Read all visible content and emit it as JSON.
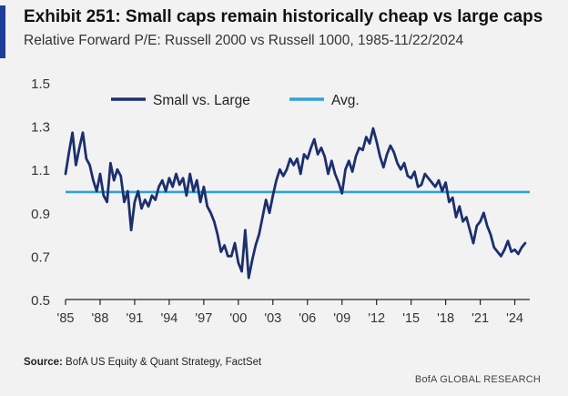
{
  "exhibit": {
    "title": "Exhibit 251: Small caps remain historically cheap vs large caps",
    "subtitle": "Relative Forward P/E: Russell 2000 vs Russell 1000, 1985-11/22/2024"
  },
  "footer": {
    "source_label": "Source:",
    "source_text": " BofA US Equity & Quant Strategy, FactSet",
    "brand": "BofA GLOBAL RESEARCH"
  },
  "colors": {
    "accent": "#1f3d99",
    "series_main": "#1c2f6e",
    "series_avg": "#2ea3dc",
    "axis": "#222222"
  },
  "chart_data": {
    "type": "line",
    "title": "Exhibit 251: Small caps remain historically cheap vs large caps",
    "subtitle": "Relative Forward P/E: Russell 2000 vs Russell 1000, 1985-11/22/2024",
    "xlabel": "",
    "ylabel": "",
    "xlim": [
      1985,
      2025.3
    ],
    "ylim": [
      0.5,
      1.5
    ],
    "yticks": [
      0.5,
      0.7,
      0.9,
      1.1,
      1.3,
      1.5
    ],
    "ytick_labels": [
      "0.5",
      "0.7",
      "0.9",
      "1.1",
      "1.3",
      "1.5"
    ],
    "xticks": [
      1985,
      1988,
      1991,
      1994,
      1997,
      2000,
      2003,
      2006,
      2009,
      2012,
      2015,
      2018,
      2021,
      2024
    ],
    "xtick_labels": [
      "'85",
      "'88",
      "'91",
      "'94",
      "'97",
      "'00",
      "'03",
      "'06",
      "'09",
      "'12",
      "'15",
      "'18",
      "'21",
      "'24"
    ],
    "grid": false,
    "legend_position": "top-left",
    "series": [
      {
        "name": "Small vs. Large",
        "x": [
          1985.0,
          1985.3,
          1985.6,
          1985.9,
          1986.2,
          1986.5,
          1986.8,
          1987.1,
          1987.4,
          1987.7,
          1988.0,
          1988.3,
          1988.6,
          1988.9,
          1989.2,
          1989.5,
          1989.8,
          1990.1,
          1990.4,
          1990.7,
          1991.0,
          1991.3,
          1991.6,
          1991.9,
          1992.2,
          1992.5,
          1992.8,
          1993.1,
          1993.4,
          1993.7,
          1994.0,
          1994.3,
          1994.6,
          1994.9,
          1995.2,
          1995.5,
          1995.8,
          1996.1,
          1996.4,
          1996.7,
          1997.0,
          1997.3,
          1997.6,
          1997.9,
          1998.2,
          1998.5,
          1998.8,
          1999.1,
          1999.4,
          1999.7,
          2000.0,
          2000.3,
          2000.6,
          2000.9,
          2001.2,
          2001.5,
          2001.8,
          2002.1,
          2002.4,
          2002.7,
          2003.0,
          2003.3,
          2003.6,
          2003.9,
          2004.2,
          2004.5,
          2004.8,
          2005.1,
          2005.4,
          2005.7,
          2006.0,
          2006.3,
          2006.6,
          2006.9,
          2007.2,
          2007.5,
          2007.8,
          2008.1,
          2008.4,
          2008.7,
          2009.0,
          2009.3,
          2009.6,
          2009.9,
          2010.2,
          2010.5,
          2010.8,
          2011.1,
          2011.4,
          2011.7,
          2012.0,
          2012.3,
          2012.6,
          2012.9,
          2013.2,
          2013.5,
          2013.8,
          2014.1,
          2014.4,
          2014.7,
          2015.0,
          2015.3,
          2015.6,
          2015.9,
          2016.2,
          2016.5,
          2016.8,
          2017.1,
          2017.4,
          2017.7,
          2018.0,
          2018.3,
          2018.6,
          2018.9,
          2019.2,
          2019.5,
          2019.8,
          2020.1,
          2020.4,
          2020.7,
          2021.0,
          2021.3,
          2021.6,
          2021.9,
          2022.2,
          2022.5,
          2022.8,
          2023.1,
          2023.4,
          2023.7,
          2024.0,
          2024.3,
          2024.6,
          2024.9
        ],
        "values": [
          1.08,
          1.18,
          1.27,
          1.12,
          1.2,
          1.27,
          1.15,
          1.12,
          1.05,
          1.0,
          1.08,
          0.98,
          0.95,
          1.13,
          1.05,
          1.1,
          1.07,
          0.95,
          1.0,
          0.82,
          0.95,
          1.0,
          0.92,
          0.96,
          0.93,
          0.98,
          0.96,
          1.02,
          1.05,
          1.0,
          1.06,
          1.02,
          1.08,
          1.03,
          1.06,
          0.98,
          1.08,
          1.0,
          1.05,
          0.95,
          1.02,
          0.93,
          0.9,
          0.86,
          0.8,
          0.72,
          0.75,
          0.7,
          0.7,
          0.76,
          0.67,
          0.63,
          0.82,
          0.6,
          0.68,
          0.75,
          0.8,
          0.88,
          0.96,
          0.9,
          0.98,
          1.05,
          1.1,
          1.07,
          1.1,
          1.15,
          1.12,
          1.15,
          1.08,
          1.17,
          1.15,
          1.2,
          1.24,
          1.17,
          1.2,
          1.16,
          1.08,
          1.14,
          1.08,
          1.04,
          0.99,
          1.1,
          1.14,
          1.09,
          1.16,
          1.2,
          1.19,
          1.25,
          1.22,
          1.29,
          1.23,
          1.16,
          1.11,
          1.17,
          1.21,
          1.18,
          1.13,
          1.1,
          1.13,
          1.07,
          1.06,
          1.09,
          1.02,
          1.03,
          1.08,
          1.06,
          1.04,
          1.02,
          1.05,
          1.0,
          1.04,
          0.95,
          0.97,
          0.88,
          0.93,
          0.86,
          0.88,
          0.82,
          0.76,
          0.84,
          0.86,
          0.9,
          0.84,
          0.8,
          0.74,
          0.72,
          0.7,
          0.73,
          0.77,
          0.72,
          0.73,
          0.71,
          0.74,
          0.76
        ]
      },
      {
        "name": "Avg.",
        "x": [
          1985.0,
          2025.3
        ],
        "values": [
          0.996,
          0.996
        ]
      }
    ]
  }
}
